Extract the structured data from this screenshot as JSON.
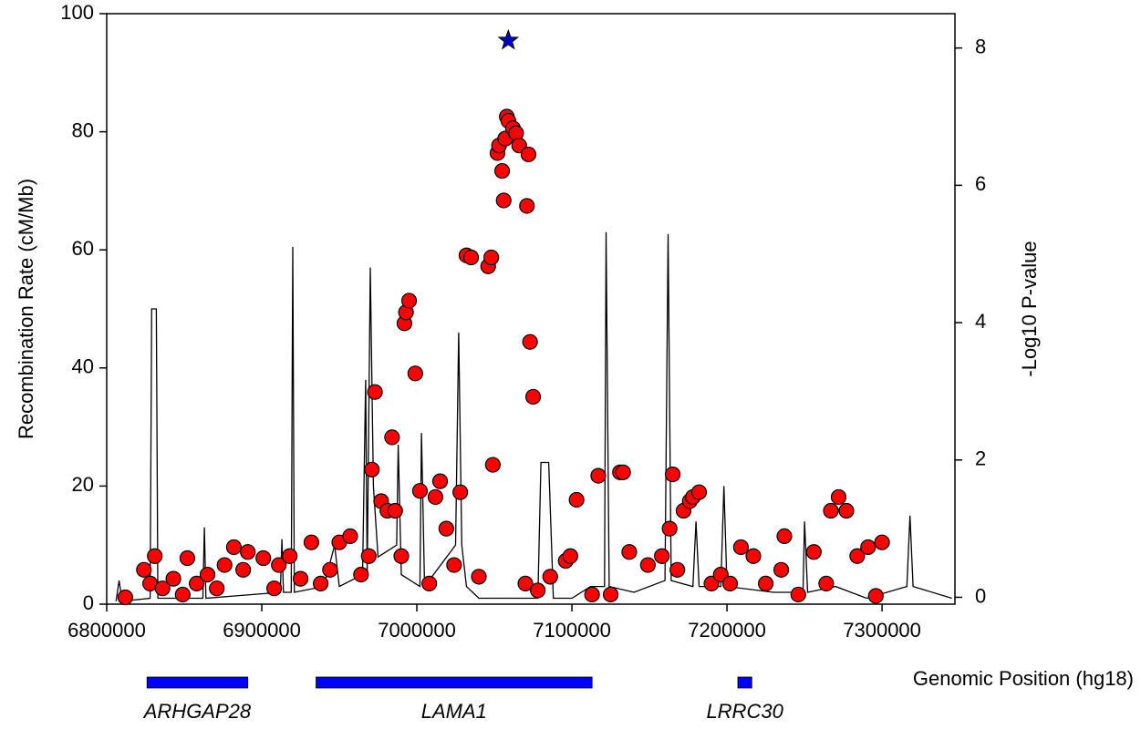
{
  "chart_data": {
    "type": "scatter",
    "xlabel": "Genomic Position (hg18)",
    "ylabel": "Recombination Rate (cM/Mb)",
    "y2label": "-Log10 P-value",
    "xlim": [
      6800000,
      7347000
    ],
    "xticks": [
      6800000,
      6900000,
      7000000,
      7100000,
      7200000,
      7300000
    ],
    "ylim": [
      0,
      100
    ],
    "yticks": [
      0,
      20,
      40,
      60,
      80,
      100
    ],
    "y2lim": [
      -0.1,
      8.5
    ],
    "y2ticks": [
      0,
      2,
      4,
      6,
      8
    ],
    "recombination": {
      "color": "#000000",
      "x": [
        6806000,
        6808000,
        6810000,
        6828000,
        6829000,
        6832000,
        6833000,
        6862000,
        6863000,
        6864000,
        6912000,
        6913000,
        6914000,
        6919000,
        6920000,
        6921000,
        6940000,
        6947000,
        6950000,
        6965000,
        6967000,
        6968000,
        6970000,
        6972000,
        6975000,
        6987000,
        6988000,
        6990000,
        7002000,
        7003000,
        7005000,
        7025000,
        7027000,
        7029000,
        7032000,
        7040000,
        7060000,
        7078000,
        7080000,
        7085000,
        7088000,
        7100000,
        7112000,
        7121000,
        7122000,
        7124000,
        7140000,
        7160000,
        7162000,
        7164000,
        7178000,
        7180000,
        7182000,
        7196000,
        7198000,
        7200000,
        7230000,
        7249000,
        7250000,
        7252000,
        7270000,
        7290000,
        7316000,
        7318000,
        7320000,
        7345000
      ],
      "y": [
        0.5,
        4,
        0.5,
        1,
        50,
        50,
        1,
        1,
        13,
        1,
        2,
        11,
        2,
        2,
        60.5,
        2,
        3,
        10,
        3,
        5,
        38,
        5,
        57,
        20,
        8,
        10,
        27,
        5,
        3,
        29,
        3,
        10,
        46,
        10,
        3,
        1,
        1,
        1,
        24,
        24,
        1,
        1,
        3,
        3,
        63,
        3,
        2,
        4,
        62.7,
        4,
        3,
        14,
        3,
        3,
        20,
        3,
        2,
        2,
        14,
        2,
        3,
        1,
        3,
        15,
        3,
        1
      ]
    },
    "points": {
      "color": "#ff0000",
      "axis": "y2",
      "x": [
        6812000,
        6824000,
        6828000,
        6831000,
        6836000,
        6843000,
        6849000,
        6852000,
        6858000,
        6865000,
        6871000,
        6876000,
        6882000,
        6888000,
        6891000,
        6901000,
        6908000,
        6911000,
        6918000,
        6925000,
        6932000,
        6938000,
        6944000,
        6950000,
        6957000,
        6964000,
        6969000,
        6971000,
        6973000,
        6977000,
        6981000,
        6984000,
        6986000,
        6990000,
        6992000,
        6993000,
        6995000,
        6999000,
        7002000,
        7008000,
        7012000,
        7015000,
        7019000,
        7024000,
        7028000,
        7032000,
        7035000,
        7040000,
        7046000,
        7048000,
        7049000,
        7052000,
        7053000,
        7055000,
        7056000,
        7057000,
        7058000,
        7059000,
        7062000,
        7064000,
        7066000,
        7070000,
        7071000,
        7072000,
        7073000,
        7075000,
        7078000,
        7086000,
        7096000,
        7099000,
        7103000,
        7113000,
        7117000,
        7125000,
        7131000,
        7133000,
        7137000,
        7149000,
        7158000,
        7163000,
        7165000,
        7168000,
        7172000,
        7176000,
        7178000,
        7182000,
        7190000,
        7196000,
        7202000,
        7209000,
        7217000,
        7225000,
        7235000,
        7237000,
        7246000,
        7256000,
        7264000,
        7267000,
        7272000,
        7277000,
        7284000,
        7291000,
        7296000,
        7300000
      ],
      "y": [
        0,
        0.4,
        0.2,
        0.6,
        0.13,
        0.27,
        0.04,
        0.57,
        0.2,
        0.33,
        0.13,
        0.47,
        0.73,
        0.4,
        0.66,
        0.57,
        0.13,
        0.47,
        0.6,
        0.27,
        0.8,
        0.2,
        0.4,
        0.8,
        0.89,
        0.33,
        0.6,
        1.86,
        2.99,
        1.4,
        1.26,
        2.33,
        1.26,
        0.6,
        3.99,
        4.15,
        4.32,
        3.26,
        1.55,
        0.2,
        1.46,
        1.69,
        1.0,
        0.47,
        1.53,
        4.98,
        4.95,
        0.3,
        4.82,
        4.95,
        1.93,
        6.47,
        6.58,
        6.21,
        5.78,
        6.68,
        7.0,
        6.94,
        6.83,
        6.76,
        6.58,
        0.2,
        5.7,
        6.45,
        3.72,
        2.92,
        0.1,
        0.3,
        0.53,
        0.6,
        1.42,
        0.04,
        1.77,
        0.04,
        1.82,
        1.82,
        0.66,
        0.47,
        0.6,
        1.0,
        1.79,
        0.4,
        1.26,
        1.4,
        1.46,
        1.53,
        0.2,
        0.33,
        0.2,
        0.73,
        0.6,
        0.2,
        0.4,
        0.89,
        0.04,
        0.66,
        0.2,
        1.26,
        1.46,
        1.26,
        0.6,
        0.73,
        0.02,
        0.8
      ]
    },
    "top_snp": {
      "x": 7059000,
      "y": 8.11,
      "color": "#0000cc",
      "axis": "y2"
    },
    "gene_color": "#0000ff",
    "genes": [
      {
        "label": "ARHGAP28",
        "start": 6826000,
        "end": 6891000
      },
      {
        "label": "LAMA1",
        "start": 6935000,
        "end": 7113000
      },
      {
        "label": "LRRC30",
        "start": 7207000,
        "end": 7216000
      }
    ]
  }
}
